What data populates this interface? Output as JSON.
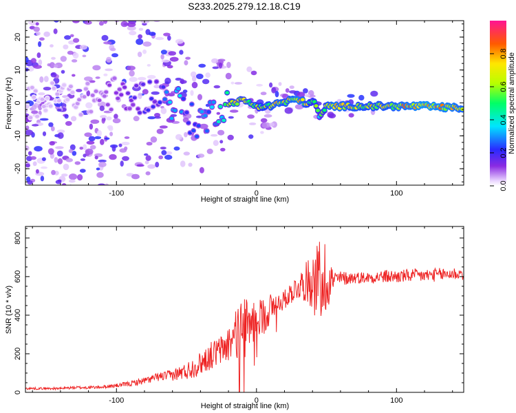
{
  "title": "S233.2025.279.12.18.C19",
  "chart_data": [
    {
      "type": "heatmap",
      "xlabel": "Height of straight line (km)",
      "ylabel": "Frequency (Hz)",
      "xlim": [
        -165,
        148
      ],
      "ylim": [
        -25,
        25
      ],
      "x_ticks": [
        -100,
        0,
        100
      ],
      "y_ticks": [
        -20,
        -10,
        0,
        10,
        20
      ],
      "colorbar": {
        "label": "Normalized spectral amplitude",
        "range": [
          0,
          1
        ],
        "ticks": [
          "0.0",
          "0.2",
          "0.4",
          "0.6",
          "0.8"
        ],
        "tick_values": [
          0,
          0.2,
          0.4,
          0.6,
          0.8
        ]
      },
      "ridge": {
        "x": [
          -160,
          -140,
          -120,
          -100,
          -90,
          -80,
          -70,
          -60,
          -55,
          -50,
          -45,
          -40,
          -35,
          -30,
          -25,
          -20,
          -15,
          -10,
          -5,
          0,
          5,
          10,
          15,
          20,
          25,
          30,
          35,
          40,
          42,
          45,
          48,
          50,
          55,
          60,
          80,
          100,
          120,
          140,
          148
        ],
        "freq": [
          0,
          2,
          1,
          3,
          1,
          2,
          3,
          0,
          0,
          -3,
          -6,
          -5,
          -5,
          -2,
          -1,
          0,
          0,
          1,
          0,
          -1,
          -1,
          -1,
          0,
          0,
          1,
          1,
          0,
          0,
          0,
          -4,
          -3,
          -1,
          -1,
          -1,
          -1,
          -1,
          -1,
          -1.5,
          -1.5
        ],
        "amplitude": [
          0.05,
          0.05,
          0.08,
          0.12,
          0.15,
          0.18,
          0.2,
          0.35,
          0.4,
          0.25,
          0.25,
          0.3,
          0.3,
          0.35,
          0.4,
          0.6,
          0.7,
          0.65,
          0.7,
          0.6,
          0.65,
          0.7,
          0.75,
          0.7,
          0.75,
          0.8,
          0.7,
          0.6,
          0.65,
          0.5,
          0.55,
          0.7,
          0.8,
          0.75,
          0.7,
          0.75,
          0.85,
          0.8,
          0.75
        ]
      }
    },
    {
      "type": "line",
      "xlabel": "Height of straight line (km)",
      "ylabel": "SNR (10 * v/v)",
      "xlim": [
        -165,
        148
      ],
      "ylim": [
        0,
        860
      ],
      "x_ticks": [
        -100,
        0,
        100
      ],
      "y_ticks": [
        0,
        200,
        400,
        600,
        800
      ],
      "color": "#ee2222",
      "series": [
        {
          "name": "SNR",
          "x": [
            -165,
            -150,
            -140,
            -130,
            -120,
            -110,
            -100,
            -90,
            -80,
            -70,
            -60,
            -50,
            -45,
            -40,
            -35,
            -30,
            -25,
            -20,
            -15,
            -12,
            -10,
            -8,
            -5,
            0,
            5,
            10,
            15,
            20,
            25,
            30,
            35,
            40,
            45,
            48,
            50,
            55,
            60,
            70,
            80,
            90,
            100,
            110,
            120,
            130,
            140,
            148
          ],
          "y": [
            20,
            20,
            20,
            25,
            25,
            28,
            35,
            45,
            60,
            80,
            90,
            110,
            130,
            150,
            180,
            200,
            220,
            250,
            300,
            320,
            340,
            330,
            350,
            380,
            400,
            430,
            460,
            480,
            520,
            550,
            570,
            580,
            585,
            590,
            590,
            580,
            590,
            595,
            595,
            600,
            600,
            605,
            605,
            610,
            615,
            615
          ],
          "noise": [
            6,
            6,
            6,
            8,
            8,
            8,
            10,
            14,
            18,
            22,
            30,
            45,
            55,
            60,
            70,
            75,
            80,
            100,
            120,
            150,
            160,
            150,
            140,
            90,
            100,
            90,
            60,
            50,
            60,
            70,
            100,
            150,
            220,
            250,
            180,
            60,
            40,
            30,
            30,
            35,
            35,
            35,
            35,
            35,
            35,
            35
          ]
        }
      ]
    }
  ]
}
